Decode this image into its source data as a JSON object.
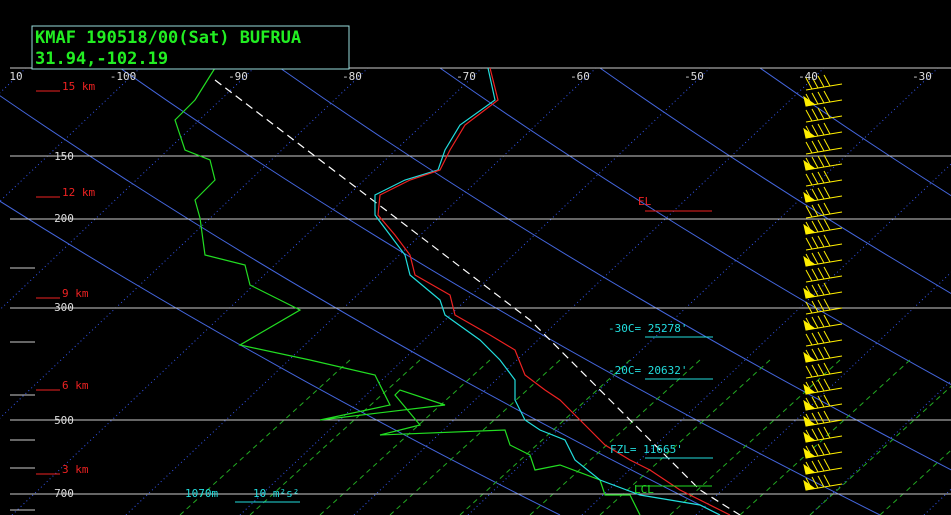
{
  "header": {
    "station": "KMAF 190518/00(Sat) BUFRUA",
    "coords": "31.94,-102.19"
  },
  "axes": {
    "temperature_labels": [
      "10",
      "-100",
      "-90",
      "-80",
      "-70",
      "-60",
      "-50",
      "-40",
      "-30"
    ],
    "pressure_labels": [
      "150",
      "200",
      "300",
      "500",
      "700"
    ],
    "height_labels": [
      "15 km",
      "12 km",
      "9 km",
      "6 km",
      "3 km"
    ]
  },
  "annotations": {
    "el": "EL",
    "minus30": "-30C= 25278'",
    "minus20": "-20C= 20632'",
    "fzl": "FZL= 11665'",
    "lcl": "LCL",
    "height": "1070m",
    "helicity": "10 m²s²"
  }
}
